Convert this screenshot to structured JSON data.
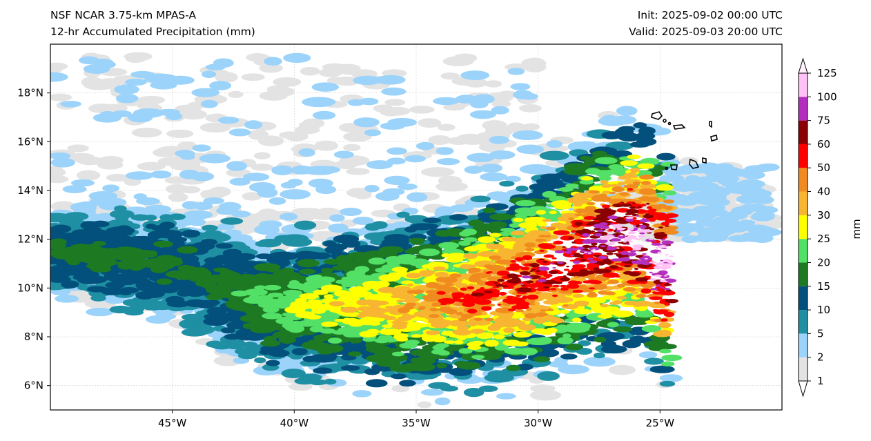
{
  "title": {
    "line1": "NSF NCAR 3.75-km MPAS-A",
    "line2": "12-hr Accumulated Precipitation (mm)",
    "init": "Init: 2025-09-02 00:00 UTC",
    "valid": "Valid: 2025-09-03 20:00 UTC"
  },
  "map": {
    "extent_lon": [
      -50,
      -20
    ],
    "extent_lat": [
      5,
      20
    ],
    "lon_ticks": [
      {
        "v": -45,
        "label": "45°W"
      },
      {
        "v": -40,
        "label": "40°W"
      },
      {
        "v": -35,
        "label": "35°W"
      },
      {
        "v": -30,
        "label": "30°W"
      },
      {
        "v": -25,
        "label": "25°W"
      }
    ],
    "lat_ticks": [
      {
        "v": 6,
        "label": "6°N"
      },
      {
        "v": 8,
        "label": "8°N"
      },
      {
        "v": 10,
        "label": "10°N"
      },
      {
        "v": 12,
        "label": "12°N"
      },
      {
        "v": 14,
        "label": "14°N"
      },
      {
        "v": 16,
        "label": "16°N"
      },
      {
        "v": 18,
        "label": "18°N"
      }
    ]
  },
  "colorbar": {
    "label": "mm",
    "levels": [
      "1",
      "2",
      "5",
      "10",
      "15",
      "20",
      "25",
      "30",
      "40",
      "50",
      "60",
      "75",
      "100",
      "125"
    ],
    "colors": [
      "#e3e3e3",
      "#9bd3fb",
      "#1f8fa3",
      "#02507b",
      "#1e7a22",
      "#53e066",
      "#ffff00",
      "#f7b531",
      "#f08b1f",
      "#ff0000",
      "#8b0000",
      "#b52fbe",
      "#ffc1f6"
    ]
  }
}
